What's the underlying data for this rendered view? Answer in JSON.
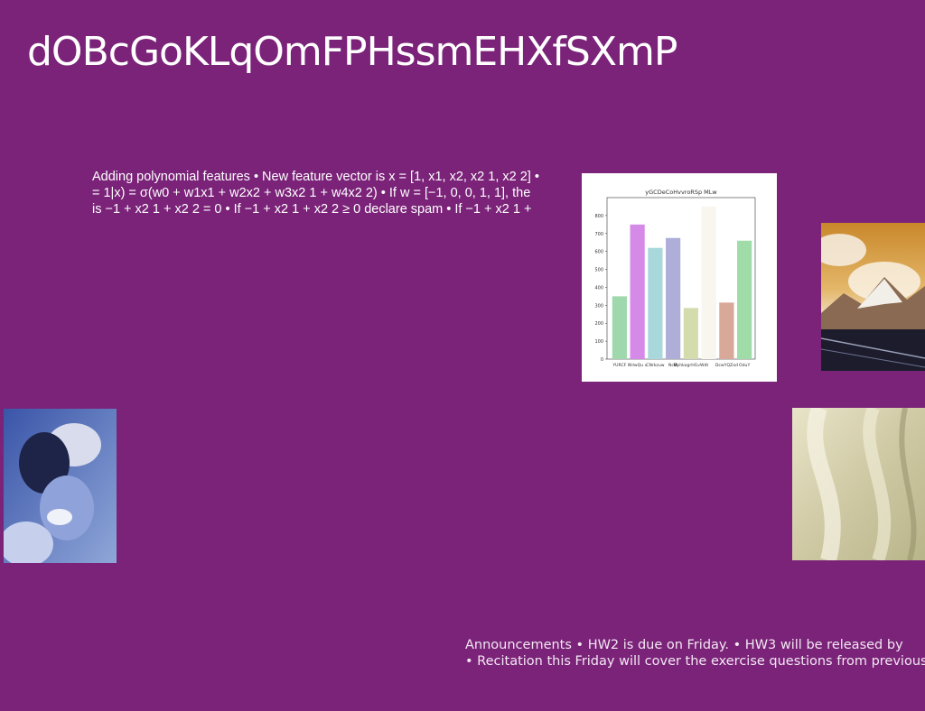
{
  "slide": {
    "title": "dOBcGoKLqOmFPHssmEHXfSXmP",
    "body_lines": [
      "Adding polynomial features • New feature vector is x = [1, x1, x2, x2 1, x2 2] •",
      "= 1|x) = σ(w0 + w1x1 + w2x2 + w3x2 1 + w4x2 2) • If w = [−1, 0, 0, 1, 1], the",
      "is −1 + x2 1 + x2 2 = 0 • If −1 + x2 1 + x2 2 ≥ 0 declare spam • If −1 + x2 1 +"
    ],
    "announcement_lines": [
      "Announcements • HW2 is due on Friday. • HW3 will be released by",
      "• Recitation this Friday will cover the exercise questions from previous"
    ]
  },
  "chart_data": {
    "type": "bar",
    "title": "yGCDeCoHvvroRSp MLw",
    "categories": [
      "YURCF",
      "NHwQu v",
      "CNrkzuw",
      "NcBl",
      "MyhkogrHGvWdt",
      "",
      "DcwYQZod",
      "OduY"
    ],
    "values": [
      350,
      750,
      620,
      675,
      285,
      850,
      315,
      660
    ],
    "colors": [
      "#9fd8ad",
      "#d68ae8",
      "#a8d8dc",
      "#aeaed8",
      "#d4dcae",
      "#f8f6ee",
      "#d8a898",
      "#a0dca8"
    ],
    "ylim": [
      0,
      900
    ],
    "yticks": [
      0,
      100,
      200,
      300,
      400,
      500,
      600,
      700,
      800
    ]
  }
}
